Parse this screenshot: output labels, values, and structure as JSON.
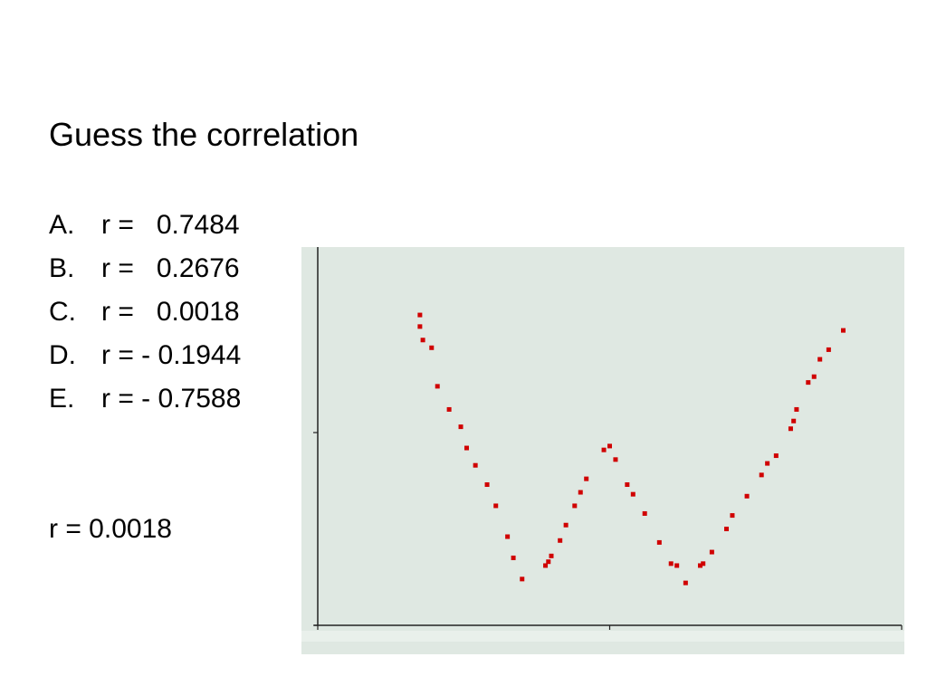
{
  "title": "Guess the correlation",
  "options": [
    {
      "letter": "A.",
      "text": "r =   0.7484"
    },
    {
      "letter": "B.",
      "text": "r =   0.2676"
    },
    {
      "letter": "C.",
      "text": "r =   0.0018"
    },
    {
      "letter": "D.",
      "text": "r = - 0.1944"
    },
    {
      "letter": "E.",
      "text": "r = - 0.7588"
    }
  ],
  "answer": "r = 0.0018",
  "chart_data": {
    "type": "scatter",
    "color": "#d00000",
    "x": [
      0.35,
      0.35,
      0.36,
      0.39,
      0.41,
      0.45,
      0.49,
      0.51,
      0.54,
      0.58,
      0.61,
      0.65,
      0.67,
      0.7,
      0.78,
      0.79,
      0.8,
      0.83,
      0.85,
      0.88,
      0.9,
      0.92,
      0.98,
      1.0,
      1.02,
      1.06,
      1.08,
      1.12,
      1.17,
      1.21,
      1.23,
      1.26,
      1.31,
      1.32,
      1.35,
      1.4,
      1.42,
      1.47,
      1.52,
      1.54,
      1.57,
      1.62,
      1.63,
      1.64,
      1.68,
      1.7,
      1.72,
      1.75,
      1.8
    ],
    "values": [
      1.61,
      1.55,
      1.48,
      1.44,
      1.24,
      1.12,
      1.03,
      0.92,
      0.83,
      0.73,
      0.62,
      0.46,
      0.35,
      0.24,
      0.31,
      0.33,
      0.36,
      0.44,
      0.52,
      0.62,
      0.69,
      0.76,
      0.91,
      0.93,
      0.86,
      0.73,
      0.68,
      0.58,
      0.43,
      0.32,
      0.31,
      0.22,
      0.31,
      0.32,
      0.38,
      0.5,
      0.57,
      0.67,
      0.78,
      0.84,
      0.88,
      1.02,
      1.06,
      1.12,
      1.26,
      1.29,
      1.38,
      1.43,
      1.53
    ],
    "xlim": [
      0,
      2
    ],
    "ylim": [
      0,
      2
    ],
    "xticks": [
      0,
      1,
      2
    ],
    "yticks": [
      0,
      1
    ]
  }
}
